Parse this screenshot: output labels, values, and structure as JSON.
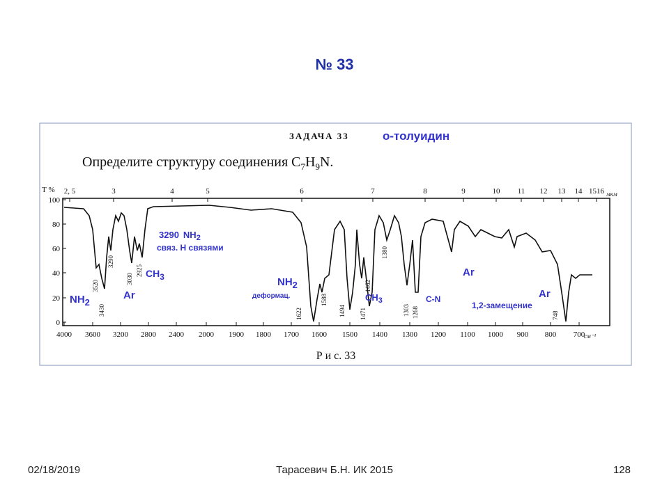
{
  "header": {
    "title": "№ 33"
  },
  "figure": {
    "heading": "ЗАДАЧА 33",
    "answer": "о-толуидин",
    "task": [
      "Определите структуру соединения C",
      "7",
      "H",
      "9",
      "N."
    ],
    "y_unit": "Т %",
    "y_labels": [
      "100",
      "80",
      "60",
      "40",
      "20",
      "0"
    ],
    "x_labels": [
      "4000",
      "3600",
      "3200",
      "2800",
      "2400",
      "2000",
      "1900",
      "1800",
      "1700",
      "1600",
      "1500",
      "1400",
      "1300",
      "1200",
      "1100",
      "1000",
      "900",
      "800",
      "700"
    ],
    "x_unit": "см⁻¹",
    "top_labels": [
      "2, 5",
      "3",
      "4",
      "5",
      "6",
      "7",
      "8",
      "9",
      "10",
      "11",
      "12",
      "13",
      "14",
      "1516"
    ],
    "top_unit": "мкм",
    "peaks": [
      "3520",
      "3430",
      "3290",
      "3030",
      "2925",
      "1622",
      "1588",
      "1494",
      "1471",
      "1462",
      "1380",
      "1303",
      "1268",
      "748"
    ],
    "caption": "Р и с. 33"
  },
  "annotations": {
    "nh2_hbond": [
      "3290",
      "NH",
      "2"
    ],
    "hbond_note": "связ. Н связями",
    "ch3_left": [
      "CH",
      "3"
    ],
    "nh2_left": [
      "NH",
      "2"
    ],
    "ar_left": "Ar",
    "nh2_def": [
      "NH",
      "2"
    ],
    "def_note": "деформац.",
    "ch3_mid": [
      "CH",
      "3"
    ],
    "cn": "C-N",
    "ar_mid": "Ar",
    "ar_right": "Ar",
    "substitution": "1,2-замещение"
  },
  "footer": {
    "date": "02/18/2019",
    "author": "Тарасевич Б.Н.  ИК 2015",
    "page": "128"
  }
}
